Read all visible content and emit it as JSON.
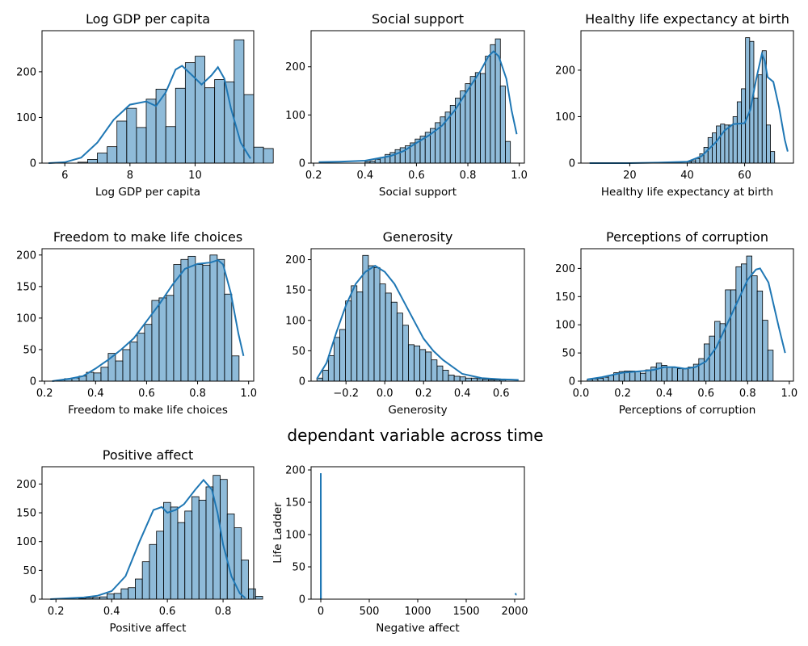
{
  "figure": {
    "suptitle": "dependant variable across time",
    "color": "#1f77b4"
  },
  "chart_data": [
    {
      "type": "bar",
      "title": "Log GDP per capita",
      "xlabel": "Log GDP per capita",
      "ylabel": "",
      "xlim": [
        5.3,
        11.8
      ],
      "ylim": [
        0,
        290
      ],
      "xticks": [
        6,
        8,
        10
      ],
      "yticks": [
        0,
        100,
        200
      ],
      "bins": {
        "start": 5.5,
        "width": 0.3
      },
      "counts": [
        0,
        0,
        0,
        2,
        8,
        22,
        36,
        92,
        120,
        78,
        140,
        162,
        80,
        164,
        220,
        234,
        165,
        183,
        178,
        270,
        150,
        35,
        32
      ],
      "kde": [
        [
          5.5,
          0
        ],
        [
          6.0,
          2
        ],
        [
          6.5,
          12
        ],
        [
          7.0,
          45
        ],
        [
          7.5,
          95
        ],
        [
          8.0,
          128
        ],
        [
          8.5,
          135
        ],
        [
          8.8,
          125
        ],
        [
          9.1,
          155
        ],
        [
          9.4,
          205
        ],
        [
          9.6,
          213
        ],
        [
          9.9,
          193
        ],
        [
          10.2,
          172
        ],
        [
          10.5,
          192
        ],
        [
          10.7,
          210
        ],
        [
          10.9,
          185
        ],
        [
          11.1,
          120
        ],
        [
          11.4,
          45
        ],
        [
          11.7,
          10
        ]
      ]
    },
    {
      "type": "bar",
      "title": "Social support",
      "xlabel": "Social support",
      "ylabel": "",
      "xlim": [
        0.19,
        1.02
      ],
      "ylim": [
        0,
        275
      ],
      "xticks": [
        0.2,
        0.4,
        0.6,
        0.8,
        1.0
      ],
      "xticklabels": [
        "0.2",
        "0.4",
        "0.6",
        "0.8",
        "1.0"
      ],
      "yticks": [
        0,
        100,
        200
      ],
      "bins": {
        "start": 0.4,
        "width": 0.0195
      },
      "counts": [
        3,
        4,
        8,
        12,
        18,
        22,
        28,
        32,
        36,
        42,
        50,
        56,
        64,
        72,
        84,
        96,
        106,
        120,
        135,
        150,
        165,
        180,
        188,
        186,
        222,
        246,
        258,
        160,
        45
      ],
      "kde": [
        [
          0.22,
          2
        ],
        [
          0.3,
          3
        ],
        [
          0.4,
          5
        ],
        [
          0.5,
          15
        ],
        [
          0.55,
          25
        ],
        [
          0.6,
          42
        ],
        [
          0.65,
          58
        ],
        [
          0.7,
          78
        ],
        [
          0.75,
          110
        ],
        [
          0.8,
          152
        ],
        [
          0.85,
          192
        ],
        [
          0.88,
          222
        ],
        [
          0.9,
          232
        ],
        [
          0.92,
          222
        ],
        [
          0.95,
          175
        ],
        [
          0.97,
          110
        ],
        [
          0.99,
          60
        ]
      ]
    },
    {
      "type": "bar",
      "title": "Healthy life expectancy at birth",
      "xlabel": "Healthy life expectancy at birth",
      "ylabel": "",
      "xlim": [
        3,
        77
      ],
      "ylim": [
        0,
        285
      ],
      "xticks": [
        20,
        40,
        60
      ],
      "yticks": [
        0,
        100,
        200
      ],
      "bins": {
        "start": 40,
        "width": 1.45
      },
      "counts": [
        3,
        5,
        10,
        20,
        34,
        55,
        65,
        80,
        84,
        82,
        82,
        100,
        132,
        160,
        270,
        262,
        140,
        190,
        242,
        82,
        25
      ],
      "kde": [
        [
          6,
          0
        ],
        [
          20,
          0
        ],
        [
          30,
          1
        ],
        [
          40,
          3
        ],
        [
          45,
          15
        ],
        [
          50,
          45
        ],
        [
          53,
          70
        ],
        [
          56,
          84
        ],
        [
          60,
          86
        ],
        [
          62,
          115
        ],
        [
          64,
          180
        ],
        [
          66,
          235
        ],
        [
          67,
          220
        ],
        [
          68,
          185
        ],
        [
          70,
          175
        ],
        [
          72,
          120
        ],
        [
          74,
          50
        ],
        [
          75,
          25
        ]
      ]
    },
    {
      "type": "bar",
      "title": "Freedom to make life choices",
      "xlabel": "Freedom to make life choices",
      "ylabel": "",
      "xlim": [
        0.19,
        1.02
      ],
      "ylim": [
        0,
        210
      ],
      "xticks": [
        0.2,
        0.4,
        0.6,
        0.8,
        1.0
      ],
      "xticklabels": [
        "0.2",
        "0.4",
        "0.6",
        "0.8",
        "1.0"
      ],
      "yticks": [
        0,
        50,
        100,
        150,
        200
      ],
      "bins": {
        "start": 0.25,
        "width": 0.0285
      },
      "counts": [
        2,
        4,
        5,
        8,
        14,
        13,
        22,
        44,
        32,
        50,
        62,
        76,
        90,
        128,
        132,
        136,
        185,
        193,
        198,
        185,
        184,
        200,
        193,
        138,
        40
      ],
      "kde": [
        [
          0.23,
          0
        ],
        [
          0.3,
          4
        ],
        [
          0.35,
          8
        ],
        [
          0.4,
          20
        ],
        [
          0.45,
          34
        ],
        [
          0.5,
          50
        ],
        [
          0.55,
          68
        ],
        [
          0.6,
          95
        ],
        [
          0.65,
          122
        ],
        [
          0.7,
          152
        ],
        [
          0.75,
          178
        ],
        [
          0.8,
          186
        ],
        [
          0.85,
          188
        ],
        [
          0.88,
          192
        ],
        [
          0.9,
          185
        ],
        [
          0.93,
          140
        ],
        [
          0.96,
          75
        ],
        [
          0.98,
          40
        ]
      ]
    },
    {
      "type": "bar",
      "title": "Generosity",
      "xlabel": "Generosity",
      "ylabel": "",
      "xlim": [
        -0.38,
        0.72
      ],
      "ylim": [
        0,
        218
      ],
      "xticks": [
        -0.2,
        0.0,
        0.2,
        0.4,
        0.6
      ],
      "xticklabels": [
        "−0.2",
        "0.0",
        "0.2",
        "0.4",
        "0.6"
      ],
      "yticks": [
        0,
        50,
        100,
        150,
        200
      ],
      "bins": {
        "start": -0.35,
        "width": 0.0295
      },
      "counts": [
        5,
        18,
        42,
        72,
        85,
        132,
        157,
        147,
        207,
        190,
        187,
        160,
        145,
        130,
        112,
        92,
        60,
        58,
        52,
        48,
        35,
        25,
        18,
        10,
        8,
        7,
        5,
        5,
        4,
        3,
        2,
        2,
        2
      ],
      "kde": [
        [
          -0.35,
          4
        ],
        [
          -0.3,
          30
        ],
        [
          -0.25,
          80
        ],
        [
          -0.2,
          125
        ],
        [
          -0.15,
          160
        ],
        [
          -0.1,
          180
        ],
        [
          -0.05,
          190
        ],
        [
          0.0,
          180
        ],
        [
          0.05,
          160
        ],
        [
          0.1,
          130
        ],
        [
          0.15,
          100
        ],
        [
          0.2,
          70
        ],
        [
          0.25,
          50
        ],
        [
          0.3,
          35
        ],
        [
          0.4,
          12
        ],
        [
          0.5,
          5
        ],
        [
          0.6,
          3
        ],
        [
          0.69,
          2
        ]
      ]
    },
    {
      "type": "bar",
      "title": "Perceptions of corruption",
      "xlabel": "Perceptions of corruption",
      "ylabel": "",
      "xlim": [
        0.0,
        1.02
      ],
      "ylim": [
        0,
        235
      ],
      "xticks": [
        0.0,
        0.2,
        0.4,
        0.6,
        0.8,
        1.0
      ],
      "xticklabels": [
        "0.0",
        "0.2",
        "0.4",
        "0.6",
        "0.8",
        "1.0"
      ],
      "yticks": [
        0,
        50,
        100,
        150,
        200
      ],
      "bins": {
        "start": 0.03,
        "width": 0.0255
      },
      "counts": [
        3,
        4,
        5,
        7,
        10,
        15,
        17,
        18,
        18,
        17,
        14,
        20,
        25,
        32,
        28,
        25,
        24,
        22,
        22,
        25,
        30,
        40,
        66,
        80,
        106,
        102,
        162,
        162,
        203,
        208,
        222,
        187,
        160,
        108,
        55
      ],
      "kde": [
        [
          0.03,
          3
        ],
        [
          0.1,
          7
        ],
        [
          0.2,
          15
        ],
        [
          0.3,
          18
        ],
        [
          0.35,
          20
        ],
        [
          0.4,
          25
        ],
        [
          0.45,
          25
        ],
        [
          0.5,
          22
        ],
        [
          0.55,
          25
        ],
        [
          0.6,
          35
        ],
        [
          0.65,
          60
        ],
        [
          0.7,
          100
        ],
        [
          0.75,
          140
        ],
        [
          0.8,
          180
        ],
        [
          0.84,
          198
        ],
        [
          0.86,
          200
        ],
        [
          0.9,
          175
        ],
        [
          0.95,
          95
        ],
        [
          0.98,
          50
        ]
      ]
    },
    {
      "type": "bar",
      "title": "Positive affect",
      "xlabel": "Positive affect",
      "ylabel": "",
      "xlim": [
        0.15,
        0.91
      ],
      "ylim": [
        0,
        230
      ],
      "xticks": [
        0.2,
        0.4,
        0.6,
        0.8
      ],
      "xticklabels": [
        "0.2",
        "0.4",
        "0.6",
        "0.8"
      ],
      "yticks": [
        0,
        50,
        100,
        150,
        200
      ],
      "bins": {
        "start": 0.18,
        "width": 0.0254
      },
      "counts": [
        0,
        0,
        0,
        0,
        1,
        2,
        3,
        4,
        9,
        10,
        18,
        20,
        35,
        65,
        95,
        118,
        168,
        160,
        133,
        153,
        178,
        172,
        195,
        215,
        208,
        148,
        124,
        68,
        18,
        5
      ],
      "kde": [
        [
          0.18,
          0
        ],
        [
          0.3,
          3
        ],
        [
          0.35,
          6
        ],
        [
          0.4,
          14
        ],
        [
          0.45,
          40
        ],
        [
          0.5,
          100
        ],
        [
          0.55,
          155
        ],
        [
          0.58,
          160
        ],
        [
          0.6,
          150
        ],
        [
          0.63,
          155
        ],
        [
          0.66,
          165
        ],
        [
          0.7,
          190
        ],
        [
          0.73,
          207
        ],
        [
          0.76,
          190
        ],
        [
          0.78,
          150
        ],
        [
          0.8,
          95
        ],
        [
          0.83,
          40
        ],
        [
          0.86,
          10
        ],
        [
          0.88,
          2
        ]
      ]
    },
    {
      "type": "line",
      "title": "",
      "xlabel": "Negative affect",
      "ylabel": "Life Ladder",
      "xlim": [
        -100,
        2100
      ],
      "ylim": [
        0,
        205
      ],
      "xticks": [
        0,
        500,
        1000,
        1500,
        2000
      ],
      "yticks": [
        0,
        50,
        100,
        150,
        200
      ],
      "segments": [
        [
          [
            0,
            0
          ],
          [
            0,
            195
          ],
          [
            2,
            0
          ]
        ],
        [
          [
            2005,
            7
          ],
          [
            2010,
            8
          ],
          [
            2015,
            7
          ],
          [
            2020,
            7
          ]
        ]
      ]
    }
  ]
}
